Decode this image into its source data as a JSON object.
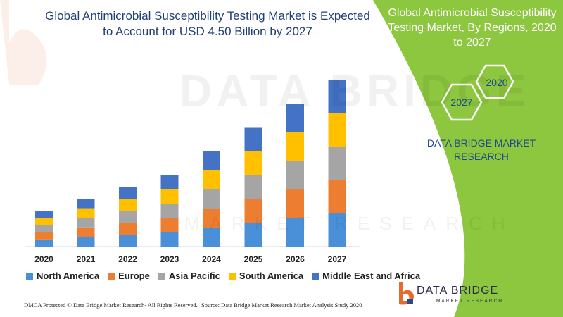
{
  "title": "Global Antimicrobial Susceptibility Testing Market is Expected to Account for USD 4.50 Billion by 2027",
  "side_panel": {
    "title": "Global Antimicrobial Susceptibility Testing Market, By Regions, 2020 to 2027",
    "hex_year_start": "2020",
    "hex_year_end": "2027",
    "brand": "DATA BRIDGE MARKET RESEARCH",
    "panel_color": "#8dc63f"
  },
  "watermark": {
    "line1": "DATA BRIDGE",
    "line2": "MARKET RESEARCH"
  },
  "footer": {
    "left": "DMCA Protected © Data Bridge Market Research- All Rights Reserved.",
    "right": "Source: Data Bridge Market Research Market Analysis Study 2020"
  },
  "logo": {
    "name": "DATA BRIDGE",
    "sub": "MARKET RESEARCH"
  },
  "chart_data": {
    "type": "bar",
    "stacked": true,
    "categories": [
      "2020",
      "2021",
      "2022",
      "2023",
      "2024",
      "2025",
      "2026",
      "2027"
    ],
    "series": [
      {
        "name": "North America",
        "color": "#4a90d9",
        "values": [
          0.5,
          0.67,
          0.83,
          1.0,
          1.33,
          1.67,
          2.0,
          2.33
        ]
      },
      {
        "name": "Europe",
        "color": "#ed7d31",
        "values": [
          0.5,
          0.67,
          0.83,
          1.0,
          1.33,
          1.67,
          2.0,
          2.33
        ]
      },
      {
        "name": "Asia Pacific",
        "color": "#a5a5a5",
        "values": [
          0.5,
          0.67,
          0.83,
          1.0,
          1.33,
          1.67,
          2.0,
          2.33
        ]
      },
      {
        "name": "South America",
        "color": "#ffc000",
        "values": [
          0.5,
          0.67,
          0.83,
          1.0,
          1.33,
          1.67,
          2.0,
          2.33
        ]
      },
      {
        "name": "Middle East and Africa",
        "color": "#4472c4",
        "values": [
          0.5,
          0.67,
          0.83,
          1.0,
          1.33,
          1.67,
          2.0,
          2.33
        ]
      }
    ],
    "grid": false,
    "legend_position": "bottom"
  }
}
